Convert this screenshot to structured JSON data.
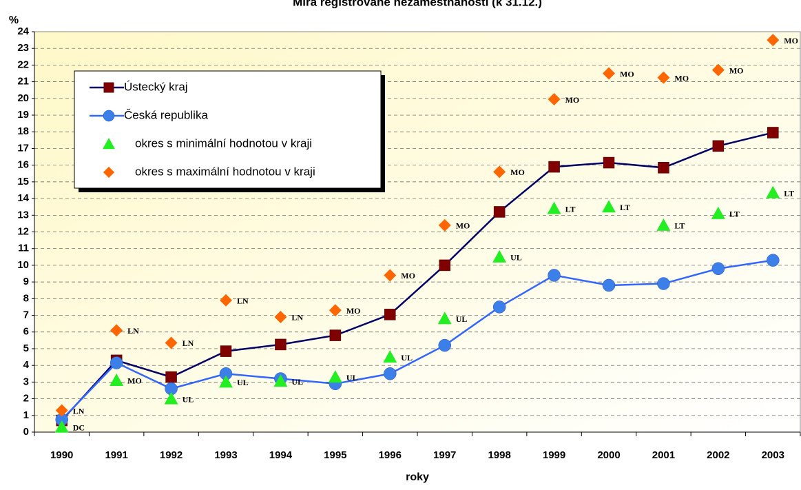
{
  "chart_data": {
    "type": "line",
    "title": "Míra registrované nezaměstnanosti (k 31.12.)",
    "y_label": "%",
    "x_label": "roky",
    "categories": [
      "1990",
      "1991",
      "1992",
      "1993",
      "1994",
      "1995",
      "1996",
      "1997",
      "1998",
      "1999",
      "2000",
      "2001",
      "2002",
      "2003"
    ],
    "ylim": [
      0,
      24
    ],
    "yticks": [
      0,
      1,
      2,
      3,
      4,
      5,
      6,
      7,
      8,
      9,
      10,
      11,
      12,
      13,
      14,
      15,
      16,
      17,
      18,
      19,
      20,
      21,
      22,
      23,
      24
    ],
    "grid": true,
    "legend": "upper left",
    "series": [
      {
        "name": "Ústecký kraj",
        "color": "#000066",
        "marker": "square",
        "marker_color": "#800000",
        "values": [
          0.7,
          4.3,
          3.3,
          4.85,
          5.25,
          5.8,
          7.05,
          10.0,
          13.2,
          15.9,
          16.15,
          15.85,
          17.15,
          17.95
        ]
      },
      {
        "name": "Česká republika",
        "color": "#3366ff",
        "marker": "circle",
        "marker_color": "#3d7fe8",
        "values": [
          0.75,
          4.15,
          2.6,
          3.5,
          3.2,
          2.9,
          3.5,
          5.2,
          7.5,
          9.4,
          8.8,
          8.9,
          9.8,
          10.3
        ]
      },
      {
        "name": "okres s minimální hodnotou v kraji",
        "color": "#22ee22",
        "marker": "triangle",
        "line": false,
        "values": [
          0.3,
          3.1,
          2.0,
          3.0,
          3.05,
          3.3,
          4.5,
          6.8,
          10.5,
          13.4,
          13.5,
          12.4,
          13.1,
          14.35
        ],
        "labels": [
          "DC",
          "MO",
          "UL",
          "UL",
          "UL",
          "UL",
          "UL",
          "UL",
          "UL",
          "LT",
          "LT",
          "LT",
          "LT",
          "LT"
        ]
      },
      {
        "name": "okres s maximální hodnotou v kraji",
        "color": "#ff6600",
        "marker": "diamond",
        "line": false,
        "values": [
          1.3,
          6.1,
          5.35,
          7.9,
          6.9,
          7.3,
          9.4,
          12.4,
          15.6,
          19.95,
          21.5,
          21.25,
          21.7,
          23.5
        ],
        "labels": [
          "LN",
          "LN",
          "LN",
          "LN",
          "LN",
          "MO",
          "MO",
          "MO",
          "MO",
          "MO",
          "MO",
          "MO",
          "MO",
          "MO"
        ]
      }
    ]
  }
}
